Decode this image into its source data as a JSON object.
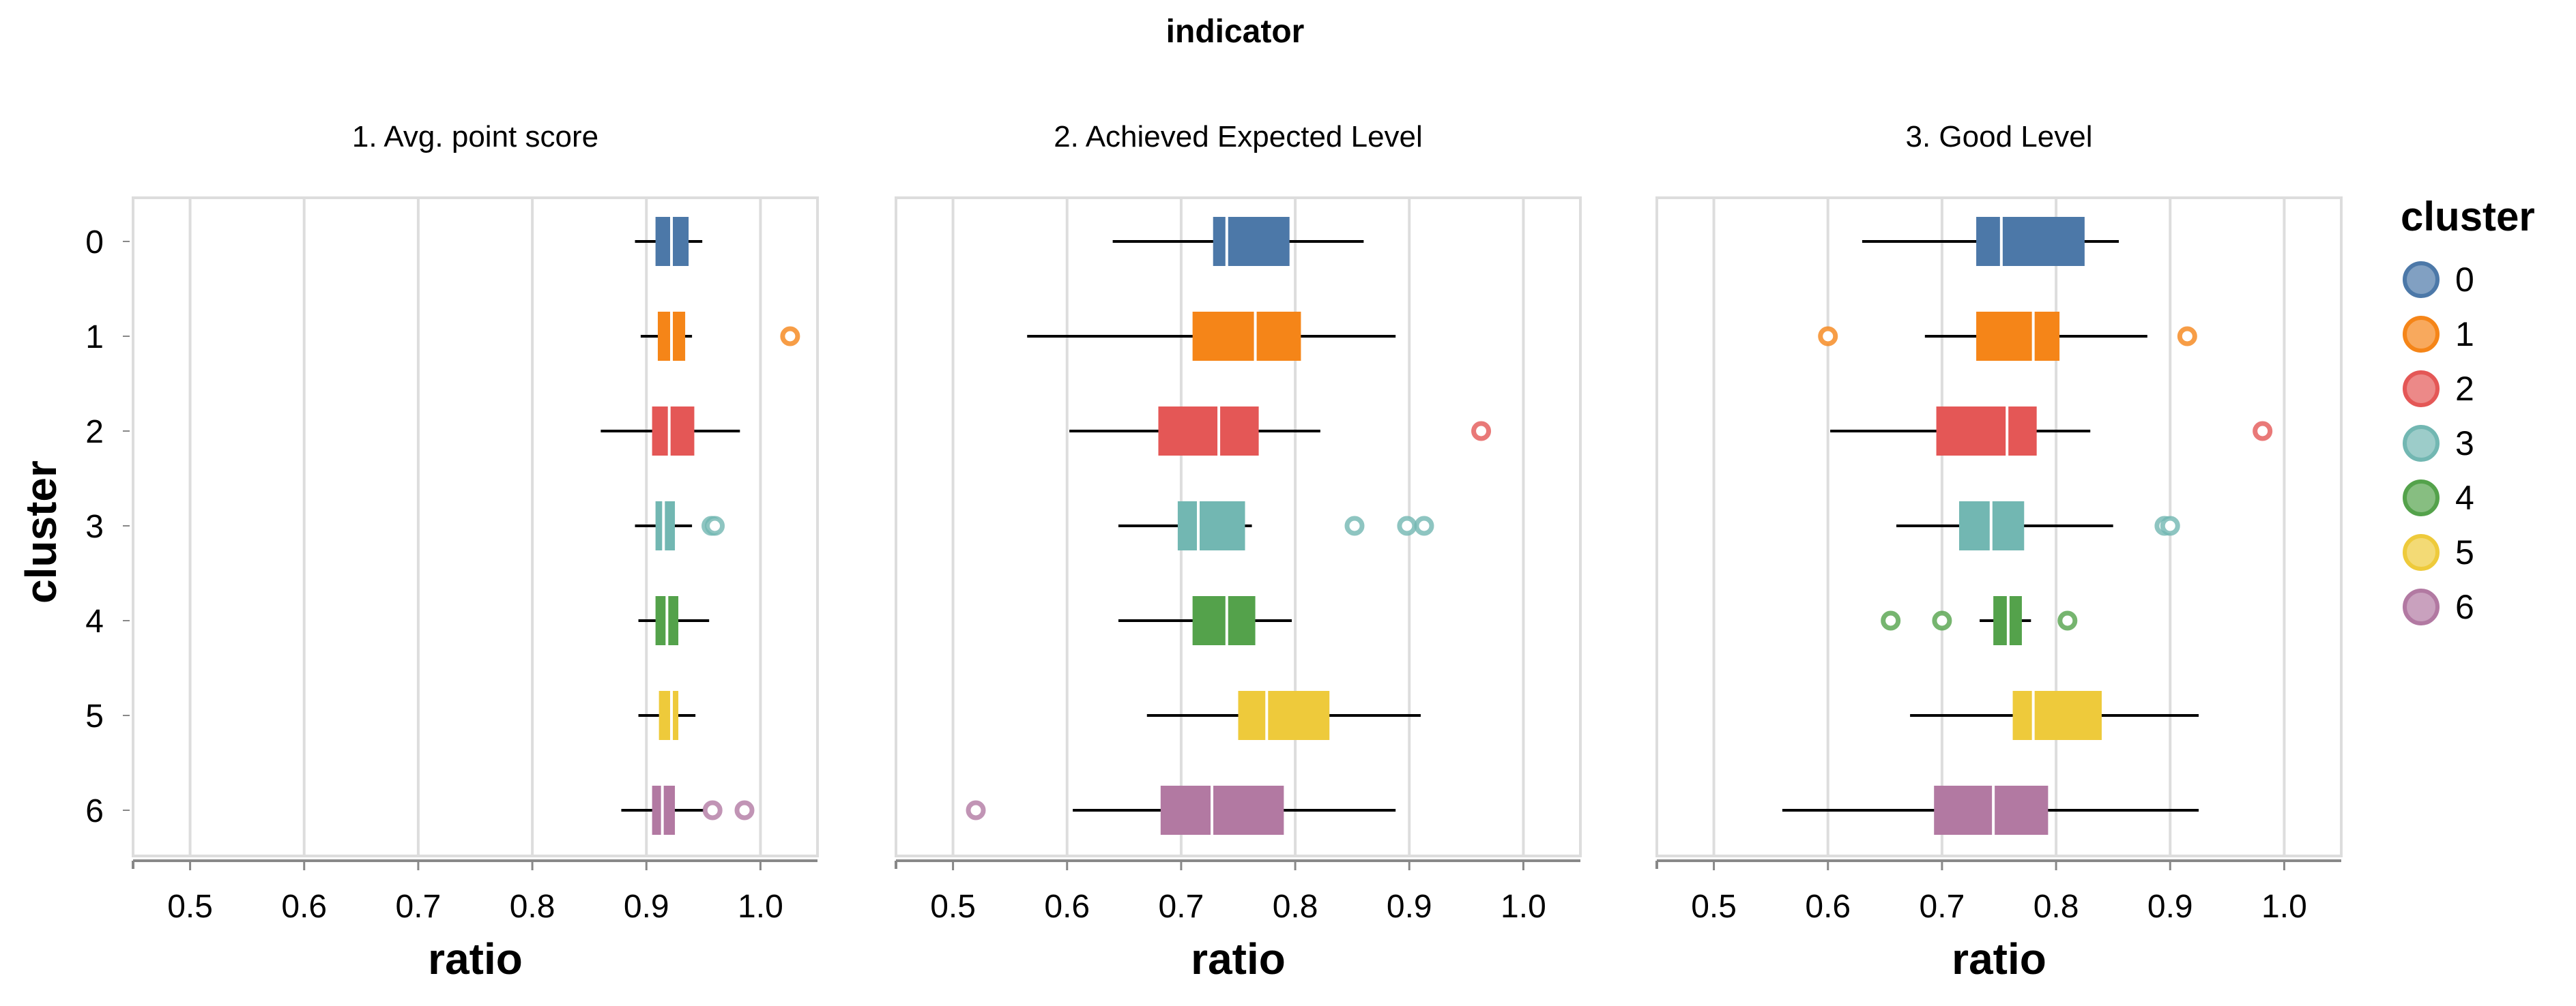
{
  "chart_data": {
    "type": "boxplot",
    "title": "indicator",
    "xlabel": "ratio",
    "ylabel": "cluster",
    "xlim": [
      0.45,
      1.05
    ],
    "x_ticks": [
      "0.5",
      "0.6",
      "0.7",
      "0.8",
      "0.9",
      "1.0"
    ],
    "x_tick_values": [
      0.5,
      0.6,
      0.7,
      0.8,
      0.9,
      1.0
    ],
    "grid": true,
    "legend": {
      "title": "cluster",
      "placement": "right",
      "items": [
        {
          "label": "0",
          "color": "#4c78a8"
        },
        {
          "label": "1",
          "color": "#f58518"
        },
        {
          "label": "2",
          "color": "#e45756"
        },
        {
          "label": "3",
          "color": "#72b7b2"
        },
        {
          "label": "4",
          "color": "#54a24b"
        },
        {
          "label": "5",
          "color": "#eeca3b"
        },
        {
          "label": "6",
          "color": "#b279a2"
        }
      ]
    },
    "categories": [
      "0",
      "1",
      "2",
      "3",
      "4",
      "5",
      "6"
    ],
    "panels": [
      {
        "title": "1. Avg. point score",
        "boxes": [
          {
            "cluster": "0",
            "min": 0.89,
            "q1": 0.908,
            "median": 0.922,
            "q3": 0.937,
            "max": 0.949,
            "outliers": []
          },
          {
            "cluster": "1",
            "min": 0.895,
            "q1": 0.91,
            "median": 0.922,
            "q3": 0.934,
            "max": 0.94,
            "outliers": [
              1.026
            ]
          },
          {
            "cluster": "2",
            "min": 0.86,
            "q1": 0.905,
            "median": 0.92,
            "q3": 0.942,
            "max": 0.982,
            "outliers": []
          },
          {
            "cluster": "3",
            "min": 0.89,
            "q1": 0.908,
            "median": 0.915,
            "q3": 0.925,
            "max": 0.94,
            "outliers": [
              0.957,
              0.96
            ]
          },
          {
            "cluster": "4",
            "min": 0.893,
            "q1": 0.908,
            "median": 0.918,
            "q3": 0.928,
            "max": 0.955,
            "outliers": []
          },
          {
            "cluster": "5",
            "min": 0.893,
            "q1": 0.911,
            "median": 0.922,
            "q3": 0.928,
            "max": 0.943,
            "outliers": []
          },
          {
            "cluster": "6",
            "min": 0.878,
            "q1": 0.905,
            "median": 0.914,
            "q3": 0.925,
            "max": 0.95,
            "outliers": [
              0.958,
              0.986
            ]
          }
        ]
      },
      {
        "title": "2. Achieved Expected Level",
        "boxes": [
          {
            "cluster": "0",
            "min": 0.64,
            "q1": 0.728,
            "median": 0.74,
            "q3": 0.795,
            "max": 0.86,
            "outliers": []
          },
          {
            "cluster": "1",
            "min": 0.565,
            "q1": 0.71,
            "median": 0.765,
            "q3": 0.805,
            "max": 0.888,
            "outliers": []
          },
          {
            "cluster": "2",
            "min": 0.602,
            "q1": 0.68,
            "median": 0.733,
            "q3": 0.768,
            "max": 0.822,
            "outliers": [
              0.963
            ]
          },
          {
            "cluster": "3",
            "min": 0.645,
            "q1": 0.697,
            "median": 0.715,
            "q3": 0.756,
            "max": 0.762,
            "outliers": [
              0.852,
              0.898,
              0.913
            ]
          },
          {
            "cluster": "4",
            "min": 0.645,
            "q1": 0.71,
            "median": 0.74,
            "q3": 0.765,
            "max": 0.797,
            "outliers": []
          },
          {
            "cluster": "5",
            "min": 0.67,
            "q1": 0.75,
            "median": 0.775,
            "q3": 0.83,
            "max": 0.91,
            "outliers": []
          },
          {
            "cluster": "6",
            "min": 0.605,
            "q1": 0.682,
            "median": 0.727,
            "q3": 0.79,
            "max": 0.888,
            "outliers": [
              0.52
            ]
          }
        ]
      },
      {
        "title": "3. Good Level",
        "boxes": [
          {
            "cluster": "0",
            "min": 0.63,
            "q1": 0.73,
            "median": 0.752,
            "q3": 0.825,
            "max": 0.855,
            "outliers": []
          },
          {
            "cluster": "1",
            "min": 0.685,
            "q1": 0.73,
            "median": 0.78,
            "q3": 0.803,
            "max": 0.88,
            "outliers": [
              0.6,
              0.915
            ]
          },
          {
            "cluster": "2",
            "min": 0.602,
            "q1": 0.695,
            "median": 0.757,
            "q3": 0.783,
            "max": 0.83,
            "outliers": [
              0.981
            ]
          },
          {
            "cluster": "3",
            "min": 0.66,
            "q1": 0.715,
            "median": 0.743,
            "q3": 0.772,
            "max": 0.85,
            "outliers": [
              0.895,
              0.9
            ]
          },
          {
            "cluster": "4",
            "min": 0.733,
            "q1": 0.745,
            "median": 0.758,
            "q3": 0.77,
            "max": 0.778,
            "outliers": [
              0.655,
              0.7,
              0.81
            ]
          },
          {
            "cluster": "5",
            "min": 0.672,
            "q1": 0.762,
            "median": 0.78,
            "q3": 0.84,
            "max": 0.925,
            "outliers": []
          },
          {
            "cluster": "6",
            "min": 0.56,
            "q1": 0.693,
            "median": 0.745,
            "q3": 0.793,
            "max": 0.925,
            "outliers": []
          }
        ]
      }
    ]
  }
}
